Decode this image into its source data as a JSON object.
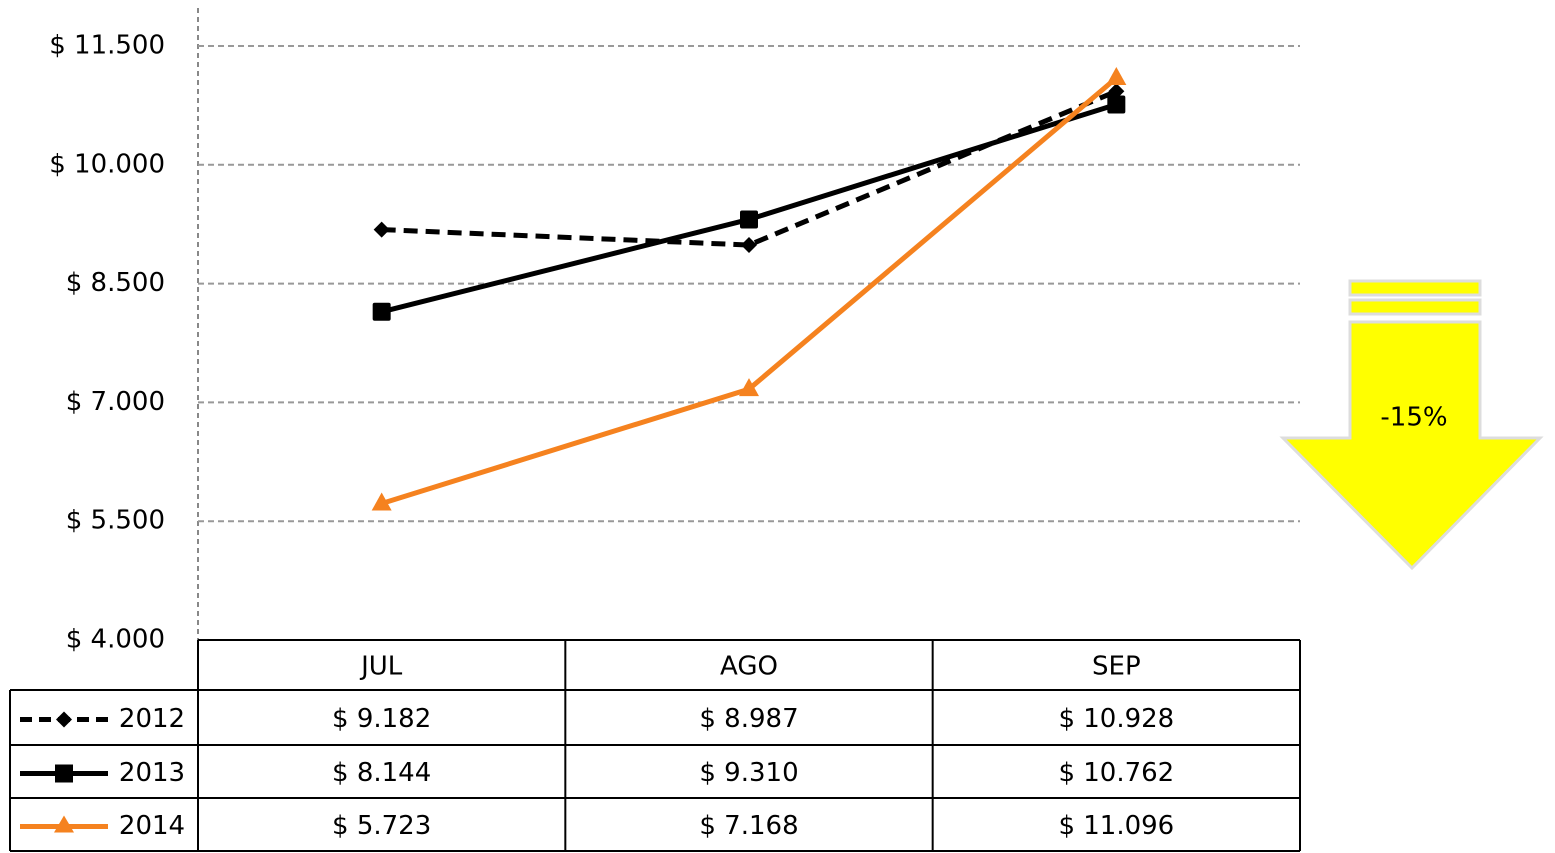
{
  "chart_data": {
    "type": "line",
    "categories": [
      "JUL",
      "AGO",
      "SEP"
    ],
    "series": [
      {
        "name": "2012",
        "color": "#000000",
        "dashed": true,
        "marker": "diamond",
        "values": [
          9182,
          8987,
          10928
        ],
        "value_labels": [
          "$ 9.182",
          "$ 8.987",
          "$ 10.928"
        ]
      },
      {
        "name": "2013",
        "color": "#000000",
        "dashed": false,
        "marker": "square",
        "values": [
          8144,
          9310,
          10762
        ],
        "value_labels": [
          "$ 8.144",
          "$ 9.310",
          "$ 10.762"
        ]
      },
      {
        "name": "2014",
        "color": "#f5821f",
        "dashed": false,
        "marker": "triangle",
        "values": [
          5723,
          7168,
          11096
        ],
        "value_labels": [
          "$ 5.723",
          "$ 7.168",
          "$ 11.096"
        ]
      }
    ],
    "ylim": [
      4000,
      11500
    ],
    "yticks": [
      {
        "value": 4000,
        "label": "$ 4.000"
      },
      {
        "value": 5500,
        "label": "$ 5.500"
      },
      {
        "value": 7000,
        "label": "$ 7.000"
      },
      {
        "value": 8500,
        "label": "$ 8.500"
      },
      {
        "value": 10000,
        "label": "$ 10.000"
      },
      {
        "value": 11500,
        "label": "$ 11.500"
      }
    ],
    "grid": true,
    "annotation": "-15%"
  }
}
